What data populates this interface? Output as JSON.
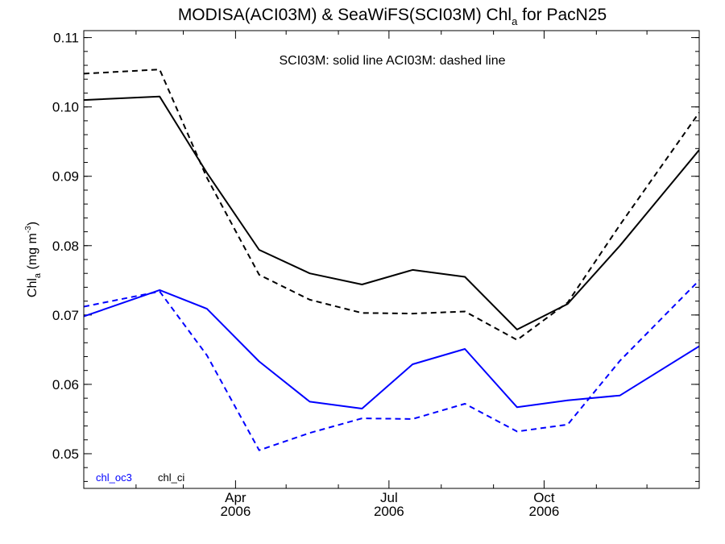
{
  "chart_data": {
    "type": "line",
    "title_main": "MODISA(ACI03M) & SeaWiFS(SCI03M)  Chl",
    "title_sub": "a",
    "title_end": " for PacN25",
    "annotation": "SCI03M: solid line   ACI03M: dashed line",
    "ylabel_main": "Chl",
    "ylabel_sub": "a",
    "ylabel_unit": " (mg m",
    "ylabel_sup": "-3",
    "ylabel_close": ")",
    "xlim": [
      "2006-01-01",
      "2007-01-01"
    ],
    "ylim": [
      0.045,
      0.111
    ],
    "grid": false,
    "y_ticks": [
      {
        "value": 0.05,
        "label": "0.05"
      },
      {
        "value": 0.06,
        "label": "0.06"
      },
      {
        "value": 0.07,
        "label": "0.07"
      },
      {
        "value": 0.08,
        "label": "0.08"
      },
      {
        "value": 0.09,
        "label": "0.09"
      },
      {
        "value": 0.1,
        "label": "0.10"
      },
      {
        "value": 0.11,
        "label": "0.11"
      }
    ],
    "y_minor_step": 0.002,
    "x_major_ticks": [
      {
        "date": "2006-04-01",
        "month": "Apr",
        "year": "2006"
      },
      {
        "date": "2006-07-01",
        "month": "Jul",
        "year": "2006"
      },
      {
        "date": "2006-10-01",
        "month": "Oct",
        "year": "2006"
      }
    ],
    "x_minor_ticks": [
      "2006-02-01",
      "2006-03-01",
      "2006-05-01",
      "2006-06-01",
      "2006-08-01",
      "2006-09-01",
      "2006-11-01",
      "2006-12-01"
    ],
    "x": [
      "2006-01-01",
      "2006-02-15",
      "2006-03-15",
      "2006-04-15",
      "2006-05-15",
      "2006-06-15",
      "2006-07-15",
      "2006-08-15",
      "2006-09-15",
      "2006-10-15",
      "2006-11-15",
      "2007-01-01"
    ],
    "series": [
      {
        "name": "chl_ci",
        "sensor": "SCI03M",
        "style": "solid",
        "color": "#000000",
        "values": [
          0.101,
          0.1015,
          0.0905,
          0.0794,
          0.076,
          0.0744,
          0.0765,
          0.0755,
          0.0679,
          0.0716,
          0.08,
          0.0938
        ]
      },
      {
        "name": "chl_ci",
        "sensor": "ACI03M",
        "style": "dashed",
        "color": "#000000",
        "values": [
          0.1048,
          0.1054,
          0.0898,
          0.0758,
          0.0722,
          0.0703,
          0.0702,
          0.0705,
          0.0664,
          0.0718,
          0.083,
          0.0992
        ]
      },
      {
        "name": "chl_oc3",
        "sensor": "SCI03M",
        "style": "solid",
        "color": "#0000ff",
        "values": [
          0.0698,
          0.0736,
          0.0709,
          0.0633,
          0.0575,
          0.0565,
          0.0629,
          0.0651,
          0.0567,
          0.0577,
          0.0584,
          0.0655
        ]
      },
      {
        "name": "chl_oc3",
        "sensor": "ACI03M",
        "style": "dashed",
        "color": "#0000ff",
        "values": [
          0.0712,
          0.0734,
          0.0642,
          0.0505,
          0.053,
          0.0551,
          0.055,
          0.0572,
          0.0532,
          0.0542,
          0.0634,
          0.075
        ]
      }
    ],
    "legend": [
      {
        "label": "chl_oc3",
        "color": "#0000ff"
      },
      {
        "label": "chl_ci",
        "color": "#000000"
      }
    ],
    "legend_position": "bottom-left"
  }
}
